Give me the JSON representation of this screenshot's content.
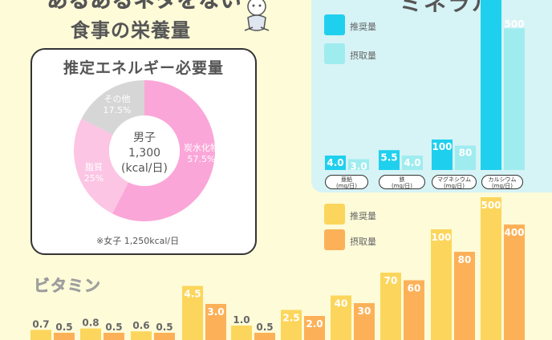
{
  "header": {
    "title_line1": "あるあるネタをない",
    "title_line2": "食事の栄養量",
    "mineral_heading": "ミネラル"
  },
  "energy": {
    "title": "推定エネルギー必要量",
    "center_line1": "男子",
    "center_line2": "1,300",
    "center_line3": "(kcal/日)",
    "note": "※女子 1,250kcal/日",
    "slices": [
      {
        "label": "炭水化物",
        "percent_label": "57.5%",
        "value": 57.5,
        "color": "#fba6d8"
      },
      {
        "label": "脂質",
        "percent_label": "25%",
        "value": 25,
        "color": "#fcc5e4"
      },
      {
        "label": "その他",
        "percent_label": "17.5%",
        "value": 17.5,
        "color": "#d6d6d6"
      }
    ]
  },
  "chart_data": [
    {
      "type": "bar",
      "title": "ミネラル",
      "categories": [
        "亜鉛\n(mg/日)",
        "鉄\n(mg/日)",
        "マグネシウム\n(mg/日)",
        "カルシウム\n(mg/日)"
      ],
      "series": [
        {
          "name": "推奨量",
          "values": [
            4.0,
            5.5,
            100,
            600
          ],
          "labels": [
            "4.0",
            "5.5",
            "100",
            ""
          ],
          "color": "#1fd0ee"
        },
        {
          "name": "摂取量",
          "values": [
            3.0,
            4.0,
            80,
            500
          ],
          "labels": [
            "3.0",
            "4.0",
            "80",
            "500"
          ],
          "color": "#9fecef"
        }
      ]
    },
    {
      "type": "bar",
      "title": "ビタミン",
      "series": [
        {
          "name": "推奨量",
          "values": [
            0.7,
            0.8,
            0.6,
            4.5,
            1.0,
            2.5,
            40,
            70,
            100,
            500
          ],
          "labels": [
            "0.7",
            "0.8",
            "0.6",
            "4.5",
            "1.0",
            "2.5",
            "40",
            "70",
            "100",
            "500"
          ],
          "color": "#fcd65c"
        },
        {
          "name": "摂取量",
          "values": [
            0.5,
            0.5,
            0.5,
            3.0,
            0.5,
            2.0,
            30,
            60,
            80,
            400
          ],
          "labels": [
            "0.5",
            "0.5",
            "0.5",
            "3.0",
            "0.5",
            "2.0",
            "30",
            "60",
            "80",
            "400"
          ],
          "color": "#fcb158"
        }
      ]
    }
  ],
  "mineral_legend": [
    "推奨量",
    "摂取量"
  ],
  "vitamin_legend": [
    "推奨量",
    "摂取量"
  ],
  "mineral_units": [
    "亜鉛",
    "(mg/日)",
    "鉄",
    "(mg/日)",
    "マグネシウム",
    "(mg/日)",
    "カルシウム",
    "(mg/日)"
  ]
}
